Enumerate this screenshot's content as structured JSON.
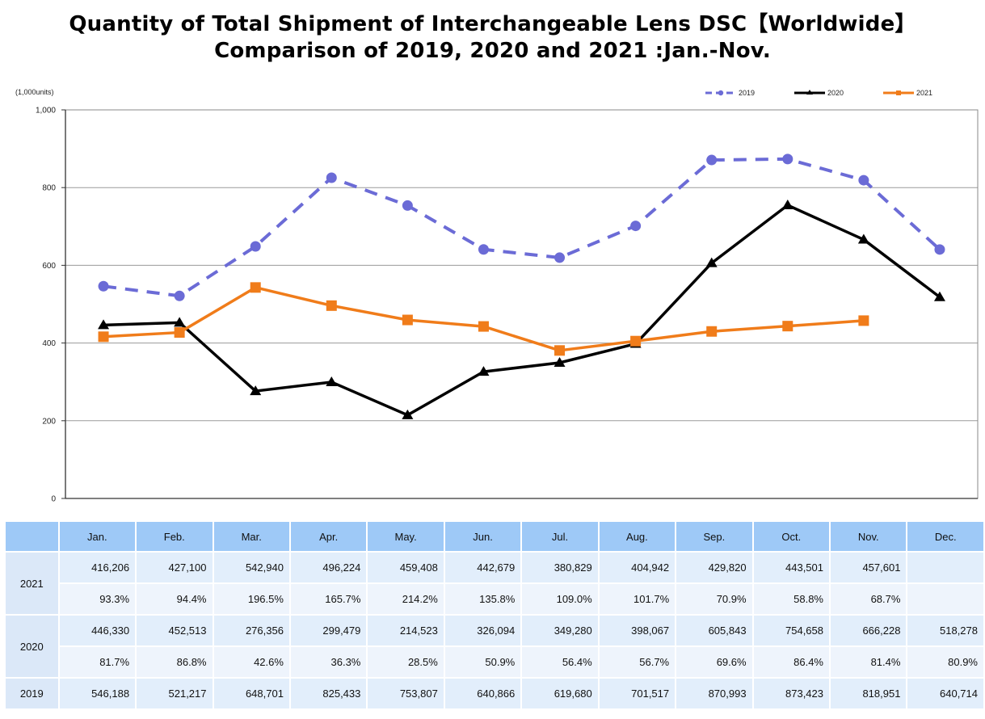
{
  "chart_data": {
    "type": "line",
    "title": "Quantity of Total Shipment of Interchangeable Lens DSC【Worldwide】",
    "subtitle": "Comparison of 2019, 2020 and 2021 :Jan.-Nov.",
    "unit_label": "(1,000units)",
    "xlabel": "",
    "ylabel": "(1,000units)",
    "ylim": [
      0,
      1000
    ],
    "yticks": [
      0,
      200,
      400,
      600,
      800,
      1000
    ],
    "ytick_labels": [
      "0",
      "200",
      "400",
      "600",
      "800",
      "1,000"
    ],
    "grid": true,
    "legend_position": "top-right",
    "categories": [
      "Jan.",
      "Feb.",
      "Mar.",
      "Apr.",
      "May.",
      "Jun.",
      "Jul.",
      "Aug.",
      "Sep.",
      "Oct.",
      "Nov.",
      "Dec."
    ],
    "series": [
      {
        "name": "2019",
        "color": "#6b6bd6",
        "style": "dashed",
        "marker": "circle",
        "values": [
          546.188,
          521.217,
          648.701,
          825.433,
          753.807,
          640.866,
          619.68,
          701.517,
          870.993,
          873.423,
          818.951,
          640.714
        ]
      },
      {
        "name": "2020",
        "color": "#000000",
        "style": "solid",
        "marker": "triangle",
        "values": [
          446.33,
          452.513,
          276.356,
          299.479,
          214.523,
          326.094,
          349.28,
          398.067,
          605.843,
          754.658,
          666.228,
          518.278
        ]
      },
      {
        "name": "2021",
        "color": "#f07c1a",
        "style": "solid",
        "marker": "square",
        "values": [
          416.206,
          427.1,
          542.94,
          496.224,
          459.408,
          442.679,
          380.829,
          404.942,
          429.82,
          443.501,
          457.601,
          null
        ]
      }
    ]
  },
  "table": {
    "headers": [
      "",
      "Jan.",
      "Feb.",
      "Mar.",
      "Apr.",
      "May.",
      "Jun.",
      "Jul.",
      "Aug.",
      "Sep.",
      "Oct.",
      "Nov.",
      "Dec."
    ],
    "rows": [
      {
        "year": "2021",
        "units": [
          "416,206",
          "427,100",
          "542,940",
          "496,224",
          "459,408",
          "442,679",
          "380,829",
          "404,942",
          "429,820",
          "443,501",
          "457,601",
          ""
        ],
        "ratio": [
          "93.3%",
          "94.4%",
          "196.5%",
          "165.7%",
          "214.2%",
          "135.8%",
          "109.0%",
          "101.7%",
          "70.9%",
          "58.8%",
          "68.7%",
          ""
        ]
      },
      {
        "year": "2020",
        "units": [
          "446,330",
          "452,513",
          "276,356",
          "299,479",
          "214,523",
          "326,094",
          "349,280",
          "398,067",
          "605,843",
          "754,658",
          "666,228",
          "518,278"
        ],
        "ratio": [
          "81.7%",
          "86.8%",
          "42.6%",
          "36.3%",
          "28.5%",
          "50.9%",
          "56.4%",
          "56.7%",
          "69.6%",
          "86.4%",
          "81.4%",
          "80.9%"
        ]
      },
      {
        "year": "2019",
        "units": [
          "546,188",
          "521,217",
          "648,701",
          "825,433",
          "753,807",
          "640,866",
          "619,680",
          "701,517",
          "870,993",
          "873,423",
          "818,951",
          "640,714"
        ]
      }
    ]
  }
}
